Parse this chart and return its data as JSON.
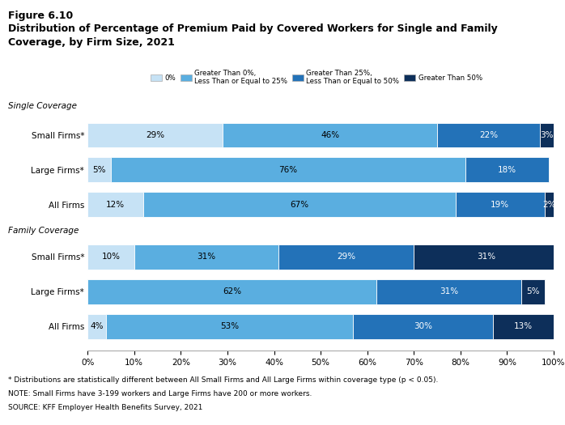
{
  "title_line1": "Figure 6.10",
  "title_line2": "Distribution of Percentage of Premium Paid by Covered Workers for Single and Family\nCoverage, by Firm Size, 2021",
  "legend_labels": [
    "0%",
    "Greater Than 0%,\nLess Than or Equal to 25%",
    "Greater Than 25%,\nLess Than or Equal to 50%",
    "Greater Than 50%"
  ],
  "colors": [
    "#c6e2f5",
    "#5aaee0",
    "#2372b8",
    "#0d2f5a"
  ],
  "bar_labels": [
    "Small Firms*",
    "Large Firms*",
    "All Firms",
    "Small Firms*",
    "Large Firms*",
    "All Firms"
  ],
  "data": [
    [
      29,
      46,
      22,
      3
    ],
    [
      5,
      76,
      18,
      0
    ],
    [
      12,
      67,
      19,
      2
    ],
    [
      10,
      31,
      29,
      31
    ],
    [
      0,
      62,
      31,
      5
    ],
    [
      4,
      53,
      30,
      13
    ]
  ],
  "bar_text": [
    [
      "29%",
      "46%",
      "22%",
      "3%"
    ],
    [
      "5%",
      "76%",
      "18%",
      ""
    ],
    [
      "12%",
      "67%",
      "19%",
      "2%"
    ],
    [
      "10%",
      "31%",
      "29%",
      "31%"
    ],
    [
      "",
      "62%",
      "31%",
      "5%"
    ],
    [
      "4%",
      "53%",
      "30%",
      "13%"
    ]
  ],
  "show_text": [
    [
      true,
      true,
      true,
      true
    ],
    [
      true,
      true,
      true,
      false
    ],
    [
      true,
      true,
      true,
      true
    ],
    [
      true,
      true,
      true,
      true
    ],
    [
      false,
      true,
      true,
      true
    ],
    [
      true,
      true,
      true,
      true
    ]
  ],
  "footnotes": [
    "* Distributions are statistically different between All Small Firms and All Large Firms within coverage type (p < 0.05).",
    "NOTE: Small Firms have 3-199 workers and Large Firms have 200 or more workers.",
    "SOURCE: KFF Employer Health Benefits Survey, 2021"
  ],
  "background_color": "#ffffff"
}
